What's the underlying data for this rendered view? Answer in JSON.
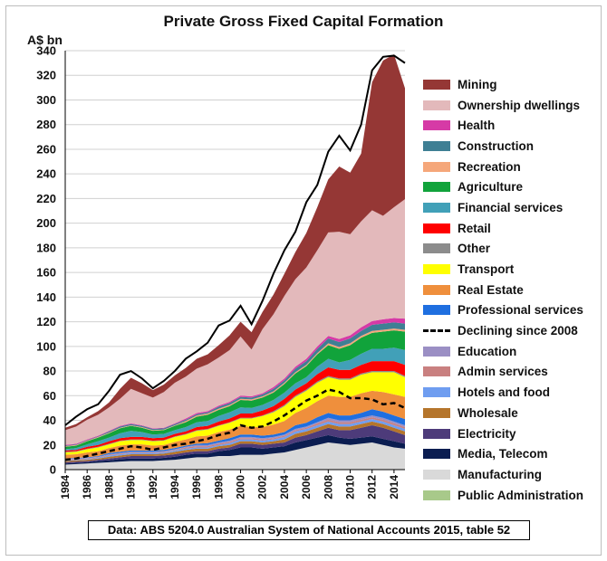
{
  "chart_data": {
    "type": "area",
    "title": "Private Gross Fixed Capital Formation",
    "ylabel": "A$ bn",
    "xlabel": "",
    "ylim": [
      0,
      340
    ],
    "xlim": [
      1984,
      2015
    ],
    "yticks": [
      0,
      20,
      40,
      60,
      80,
      100,
      120,
      140,
      160,
      180,
      200,
      220,
      240,
      260,
      280,
      300,
      320,
      340
    ],
    "xticks": [
      "1984",
      "1986",
      "1988",
      "1990",
      "1992",
      "1994",
      "1996",
      "1998",
      "2000",
      "2002",
      "2004",
      "2006",
      "2008",
      "2010",
      "2012",
      "2014"
    ],
    "x": [
      1984,
      1985,
      1986,
      1987,
      1988,
      1989,
      1990,
      1991,
      1992,
      1993,
      1994,
      1995,
      1996,
      1997,
      1998,
      1999,
      2000,
      2001,
      2002,
      2003,
      2004,
      2005,
      2006,
      2007,
      2008,
      2009,
      2010,
      2011,
      2012,
      2013,
      2014,
      2015
    ],
    "grid": "horizontal",
    "legend_position": "right",
    "stack_order_bottom_to_top": [
      "Manufacturing",
      "Media, Telecom",
      "Electricity",
      "Wholesale",
      "Hotels and food",
      "Admin services",
      "Education",
      "Professional services",
      "Real Estate",
      "Transport",
      "Other",
      "Retail",
      "Financial services",
      "Agriculture",
      "Recreation",
      "Construction",
      "Health",
      "Ownership dwellings",
      "Mining"
    ],
    "series": [
      {
        "name": "Manufacturing",
        "color": "#d9d9d9",
        "values": [
          4,
          4.5,
          5,
          5.5,
          6,
          6.5,
          7,
          7,
          7,
          7.5,
          8,
          9,
          10,
          10,
          11,
          11,
          12,
          12,
          12,
          13,
          14,
          16,
          18,
          20,
          22,
          21,
          20,
          21,
          22,
          20,
          18,
          17
        ]
      },
      {
        "name": "Media, Telecom",
        "color": "#0b1d51",
        "values": [
          1,
          1,
          1,
          1.5,
          1.5,
          2,
          2,
          2,
          2,
          2,
          2.5,
          3,
          3,
          3,
          4,
          5,
          6,
          6,
          5,
          5,
          5,
          6,
          6,
          6,
          6,
          5,
          5,
          5,
          5,
          5,
          5,
          4
        ]
      },
      {
        "name": "Electricity",
        "color": "#4d3b7a",
        "values": [
          1,
          1,
          1,
          1,
          1.5,
          1.5,
          2,
          2,
          2,
          2,
          2,
          2,
          2,
          2,
          2,
          2,
          3,
          3,
          3,
          3,
          3,
          4,
          4,
          5,
          6,
          6,
          7,
          8,
          9,
          9,
          8,
          7
        ]
      },
      {
        "name": "Wholesale",
        "color": "#b5752b",
        "values": [
          1,
          1,
          1,
          1,
          1.5,
          1.5,
          1.5,
          1.5,
          1.5,
          1.5,
          2,
          2,
          2,
          2,
          2,
          2,
          2,
          2,
          2,
          2,
          2.5,
          3,
          3,
          3,
          3,
          3,
          3,
          3,
          3,
          3,
          3,
          3
        ]
      },
      {
        "name": "Hotels and food",
        "color": "#6f9df0",
        "values": [
          0.5,
          0.5,
          0.5,
          0.5,
          1,
          1,
          1,
          1,
          1,
          1,
          1,
          1,
          1,
          1,
          1,
          1.5,
          1.5,
          1.5,
          1.5,
          1.5,
          2,
          2,
          2,
          2,
          2,
          2,
          2,
          2,
          2,
          2,
          2,
          2
        ]
      },
      {
        "name": "Admin services",
        "color": "#c98080",
        "values": [
          0.5,
          0.5,
          0.5,
          0.5,
          0.5,
          0.5,
          0.5,
          0.5,
          0.5,
          0.5,
          0.5,
          1,
          1,
          1,
          1,
          1,
          1,
          1,
          1,
          1,
          1,
          1,
          1,
          1.5,
          1.5,
          1.5,
          1.5,
          1.5,
          1.5,
          1.5,
          1.5,
          1.5
        ]
      },
      {
        "name": "Education",
        "color": "#9b8fc4",
        "values": [
          0.5,
          0.5,
          0.5,
          0.5,
          0.5,
          0.5,
          0.5,
          0.5,
          0.5,
          0.5,
          0.5,
          0.5,
          1,
          1,
          1,
          1,
          1,
          1,
          1,
          1,
          1,
          1,
          1,
          1,
          1.5,
          1.5,
          1.5,
          1.5,
          1.5,
          1.5,
          1.5,
          1.5
        ]
      },
      {
        "name": "Professional services",
        "color": "#1f6fe0",
        "values": [
          0.5,
          0.5,
          0.5,
          0.5,
          1,
          1,
          1,
          1,
          1,
          1,
          1,
          1,
          1,
          1.5,
          1.5,
          2,
          2,
          2,
          2,
          2,
          2,
          3,
          3,
          4,
          4,
          4,
          4,
          4,
          5,
          5,
          5,
          5
        ]
      },
      {
        "name": "Real Estate",
        "color": "#ef8f3c",
        "values": [
          3,
          3,
          4,
          4,
          4,
          5,
          5,
          5,
          4,
          4,
          5,
          5,
          6,
          6,
          7,
          7,
          7,
          6,
          7,
          8,
          9,
          10,
          12,
          13,
          14,
          15,
          15,
          16,
          15,
          16,
          17,
          18
        ]
      },
      {
        "name": "Transport",
        "color": "#ffff00",
        "values": [
          2,
          2,
          2.5,
          3,
          3,
          3.5,
          3.5,
          3.5,
          3.5,
          3.5,
          4,
          4,
          4.5,
          5,
          5,
          5.5,
          6,
          7,
          9,
          10,
          12,
          13,
          14,
          15,
          15,
          14,
          14,
          15,
          15,
          16,
          18,
          16
        ]
      },
      {
        "name": "Other",
        "color": "#8c8c8c",
        "values": [
          0.5,
          0.5,
          0.5,
          0.5,
          0.5,
          0.5,
          0.5,
          0.5,
          0.5,
          0.5,
          0.5,
          0.5,
          0.5,
          0.5,
          0.5,
          0.5,
          0.5,
          0.5,
          0.5,
          1,
          1,
          1,
          1,
          1,
          1,
          1,
          1,
          1,
          1,
          1,
          1,
          1
        ]
      },
      {
        "name": "Retail",
        "color": "#ff0000",
        "values": [
          1,
          1,
          1.5,
          1.5,
          2,
          2,
          2,
          2,
          2,
          2,
          2,
          2,
          2.5,
          2.5,
          3,
          3,
          3.5,
          3.5,
          4,
          4,
          5,
          5,
          5,
          6,
          7,
          7,
          7,
          7,
          8,
          8,
          8,
          9
        ]
      },
      {
        "name": "Financial services",
        "color": "#41a0b8",
        "values": [
          1,
          1.5,
          2,
          3,
          3,
          4,
          5,
          4,
          3,
          3,
          3,
          3.5,
          4,
          4,
          4.5,
          5,
          5,
          4.5,
          4.5,
          5,
          5,
          5,
          5,
          6,
          7,
          6,
          8,
          9,
          10,
          10,
          11,
          12
        ]
      },
      {
        "name": "Agriculture",
        "color": "#11a33b",
        "values": [
          2,
          2,
          2.5,
          3,
          3.5,
          4,
          4,
          3.5,
          3,
          3,
          3.5,
          4,
          4.5,
          5,
          5,
          5,
          6,
          6,
          6,
          6,
          7,
          8,
          9,
          10,
          11,
          11,
          12,
          13,
          13,
          14,
          14,
          15
        ]
      },
      {
        "name": "Recreation",
        "color": "#f5a77a",
        "values": [
          0.5,
          0.5,
          0.5,
          0.5,
          0.5,
          0.5,
          0.5,
          0.5,
          0.5,
          0.5,
          0.5,
          1,
          1,
          1,
          1,
          1,
          1,
          1,
          1,
          1,
          1,
          1,
          1,
          1,
          1.5,
          1.5,
          1.5,
          1.5,
          1.5,
          1.5,
          1.5,
          1.5
        ]
      },
      {
        "name": "Construction",
        "color": "#3f7f94",
        "values": [
          0.5,
          0.5,
          0.5,
          0.5,
          1,
          1,
          1,
          1,
          1,
          1,
          1,
          1,
          1,
          1,
          1.5,
          1.5,
          1.5,
          1.5,
          1.5,
          2,
          2,
          3,
          3,
          3.5,
          4,
          4,
          4,
          4,
          5,
          5,
          5,
          5
        ]
      },
      {
        "name": "Health",
        "color": "#d63aa6",
        "values": [
          0.5,
          0.5,
          0.5,
          0.5,
          0.5,
          0.5,
          0.5,
          0.5,
          0.5,
          0.5,
          0.5,
          1,
          1,
          1,
          1,
          1,
          1,
          1,
          1,
          1.5,
          1.5,
          1.5,
          2,
          2,
          2,
          2.5,
          2.5,
          3,
          3,
          3.5,
          3.5,
          4
        ]
      },
      {
        "name": "Ownership dwellings",
        "color": "#e3b9bb",
        "values": [
          12,
          14,
          16,
          17,
          19,
          22,
          28,
          26,
          25,
          29,
          33,
          34,
          36,
          38,
          39,
          42,
          48,
          38,
          52,
          59,
          67,
          71,
          74,
          78,
          84,
          87,
          82,
          86,
          90,
          84,
          90,
          97
        ]
      },
      {
        "name": "Mining",
        "color": "#953735",
        "values": [
          2,
          2,
          2,
          3,
          4,
          8,
          9,
          8,
          6,
          6,
          6,
          7,
          8,
          8,
          10,
          12,
          12,
          14,
          14,
          16,
          18,
          22,
          28,
          35,
          43,
          53,
          50,
          55,
          104,
          126,
          124,
          90
        ]
      }
    ],
    "total": [
      36,
      43,
      49,
      53,
      64,
      77,
      80,
      74,
      66,
      72,
      80,
      90,
      96,
      103,
      117,
      121,
      133,
      118,
      137,
      159,
      178,
      193,
      217,
      231,
      258,
      271,
      259,
      280,
      324,
      335,
      336,
      330
    ],
    "annotation_series": {
      "name": "Declining since 2008",
      "style": "dashed",
      "values": [
        8,
        9,
        11,
        13,
        15,
        17,
        19,
        18,
        16,
        18,
        20,
        21,
        23,
        25,
        28,
        30,
        36,
        34,
        35,
        39,
        44,
        50,
        56,
        60,
        65,
        63,
        58,
        58,
        57,
        53,
        54,
        50
      ]
    },
    "legend_order": [
      "Mining",
      "Ownership dwellings",
      "Health",
      "Construction",
      "Recreation",
      "Agriculture",
      "Financial services",
      "Retail",
      "Other",
      "Transport",
      "Real Estate",
      "Professional services",
      "Declining since 2008",
      "Education",
      "Admin services",
      "Hotels and food",
      "Wholesale",
      "Electricity",
      "Media, Telecom",
      "Manufacturing",
      "Public Administration"
    ],
    "legend_colors": {
      "Public Administration": "#a8c98a"
    },
    "source_note": "Data: ABS 5204.0 Australian System of National Accounts 2015, table 52"
  }
}
